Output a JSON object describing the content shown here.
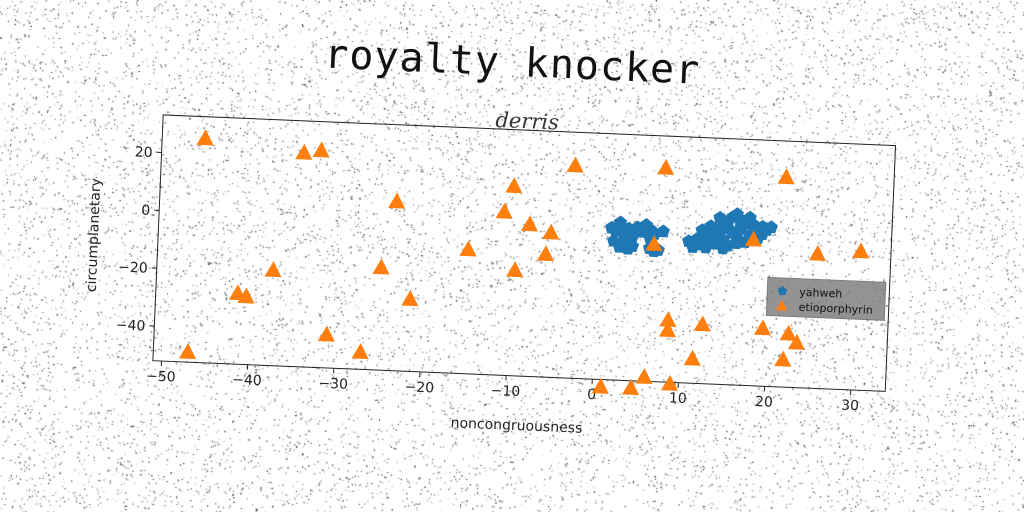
{
  "figure": {
    "suptitle": "royalty knocker"
  },
  "chart_data": {
    "type": "scatter",
    "title": "derris",
    "xlabel": "noncongruousness",
    "ylabel": "circumplanetary",
    "xlim": [
      -51,
      34
    ],
    "ylim": [
      -52,
      33
    ],
    "xticks": [
      -50,
      -40,
      -30,
      -20,
      -10,
      0,
      10,
      20,
      30
    ],
    "xtick_labels": [
      "−50",
      "−40",
      "−30",
      "−20",
      "−10",
      "0",
      "10",
      "20",
      "30"
    ],
    "yticks": [
      -40,
      -20,
      0,
      20
    ],
    "ytick_labels": [
      "−40",
      "−20",
      "0",
      "20"
    ],
    "grid": false,
    "legend_position": "right",
    "series": [
      {
        "name": "yahweh",
        "marker": "pentagon",
        "color": "#1f77b4",
        "points": [
          [
            1.5,
            0.5
          ],
          [
            2.5,
            1.5
          ],
          [
            3.5,
            0.5
          ],
          [
            2.0,
            -0.5
          ],
          [
            4.5,
            1.0
          ],
          [
            5.0,
            -0.5
          ],
          [
            6.0,
            0.5
          ],
          [
            6.5,
            -1.0
          ],
          [
            7.5,
            0.0
          ],
          [
            3.0,
            -2.0
          ],
          [
            4.0,
            -2.0
          ],
          [
            1.8,
            -4.0
          ],
          [
            3.0,
            -4.5
          ],
          [
            2.5,
            -6.0
          ],
          [
            3.5,
            -6.5
          ],
          [
            4.0,
            -5.5
          ],
          [
            6.0,
            -6.0
          ],
          [
            6.5,
            -7.0
          ],
          [
            7.0,
            -6.5
          ],
          [
            6.0,
            -2.5
          ],
          [
            2.5,
            2.5
          ],
          [
            5.5,
            2.0
          ],
          [
            10.5,
            -3.0
          ],
          [
            11.5,
            -2.0
          ],
          [
            12.0,
            -4.0
          ],
          [
            13.0,
            -3.0
          ],
          [
            11.0,
            -5.0
          ],
          [
            12.5,
            -1.0
          ],
          [
            13.5,
            -0.5
          ],
          [
            12.0,
            1.0
          ],
          [
            13.0,
            2.5
          ],
          [
            14.0,
            1.5
          ],
          [
            14.5,
            3.0
          ],
          [
            15.0,
            4.5
          ],
          [
            14.0,
            5.5
          ],
          [
            15.5,
            6.0
          ],
          [
            16.5,
            5.0
          ],
          [
            17.0,
            4.0
          ],
          [
            18.0,
            3.5
          ],
          [
            19.0,
            3.0
          ],
          [
            19.5,
            2.0
          ],
          [
            18.5,
            1.0
          ],
          [
            17.5,
            0.0
          ],
          [
            16.0,
            -1.0
          ],
          [
            15.5,
            0.5
          ],
          [
            16.5,
            2.0
          ],
          [
            14.5,
            -2.0
          ],
          [
            15.0,
            -4.0
          ],
          [
            16.0,
            -3.0
          ],
          [
            17.0,
            -2.5
          ],
          [
            17.5,
            -1.5
          ],
          [
            18.5,
            -1.0
          ],
          [
            13.5,
            -3.5
          ],
          [
            12.5,
            -5.0
          ],
          [
            14.5,
            -5.0
          ],
          [
            16.5,
            3.0
          ],
          [
            19.0,
            0.5
          ],
          [
            20.0,
            3.0
          ],
          [
            13.0,
            0.5
          ],
          [
            15.0,
            2.0
          ],
          [
            17.5,
            6.0
          ],
          [
            16.0,
            7.0
          ]
        ]
      },
      {
        "name": "etioporphyrin",
        "marker": "triangle",
        "color": "#ff7f0e",
        "points": [
          [
            -46.0,
            25.5
          ],
          [
            -34.5,
            22.0
          ],
          [
            -32.5,
            23.0
          ],
          [
            -23.5,
            6.5
          ],
          [
            -10.0,
            13.5
          ],
          [
            -11.0,
            4.5
          ],
          [
            -8.0,
            0.5
          ],
          [
            -5.5,
            -2.0
          ],
          [
            -3.0,
            21.5
          ],
          [
            7.5,
            22.0
          ],
          [
            21.5,
            20.5
          ],
          [
            -15.0,
            -9.0
          ],
          [
            -9.5,
            -15.5
          ],
          [
            -6.0,
            -9.5
          ],
          [
            -25.0,
            -16.5
          ],
          [
            -37.5,
            -19.0
          ],
          [
            -41.5,
            -27.5
          ],
          [
            -40.5,
            -28.5
          ],
          [
            -21.5,
            -27.0
          ],
          [
            -31.0,
            -40.5
          ],
          [
            -27.0,
            -46.0
          ],
          [
            -47.0,
            -48.5
          ],
          [
            6.5,
            -4.5
          ],
          [
            25.5,
            -5.5
          ],
          [
            30.5,
            -4.0
          ],
          [
            8.5,
            -30.5
          ],
          [
            8.5,
            -34.0
          ],
          [
            12.5,
            -31.5
          ],
          [
            19.5,
            -32.0
          ],
          [
            22.5,
            -33.5
          ],
          [
            23.5,
            -36.5
          ],
          [
            22.0,
            -42.5
          ],
          [
            11.5,
            -43.5
          ],
          [
            6.0,
            -50.5
          ],
          [
            9.0,
            -52.5
          ],
          [
            1.0,
            -54.5
          ],
          [
            4.5,
            -54.5
          ],
          [
            18.0,
            -1.5
          ]
        ]
      }
    ]
  }
}
